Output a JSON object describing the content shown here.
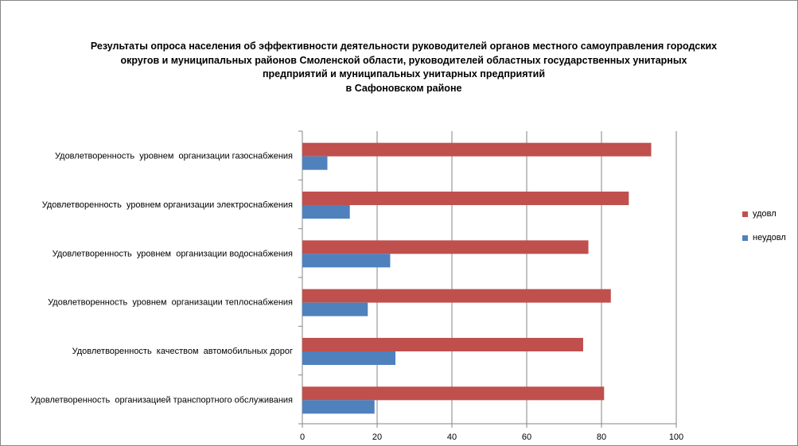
{
  "colors": {
    "udovl": "#c0504d",
    "neudovl": "#4f81bd"
  },
  "chart_data": {
    "type": "bar",
    "orientation": "horizontal",
    "title_lines": [
      "Результаты опроса населения об эффективности деятельности руководителей органов местного самоуправления городских",
      "округов и муниципальных районов Смоленской области, руководителей областных государственных унитарных",
      "предприятий и муниципальных унитарных предприятий",
      "в Сафоновском районе"
    ],
    "categories": [
      "Удовлетворенность  уровнем  организации газоснабжения",
      "Удовлетворенность  уровнем организации электроснабжения",
      "Удовлетворенность  уровнем  организации водоснабжения",
      "Удовлетворенность  уровнем  организации теплоснабжения",
      "Удовлетворенность  качеством  автомобильных дорог",
      "Удовлетворенность  организацией транспортного обслуживания"
    ],
    "series": [
      {
        "name": "удовл",
        "values": [
          93.3,
          87.3,
          76.5,
          82.5,
          75.1,
          80.7
        ]
      },
      {
        "name": "неудовл",
        "values": [
          6.7,
          12.7,
          23.5,
          17.5,
          24.9,
          19.3
        ]
      }
    ],
    "xlim": [
      0,
      100
    ],
    "xticks": [
      "0",
      "20",
      "40",
      "60",
      "80",
      "100"
    ],
    "grid": true,
    "legend_position": "right"
  }
}
